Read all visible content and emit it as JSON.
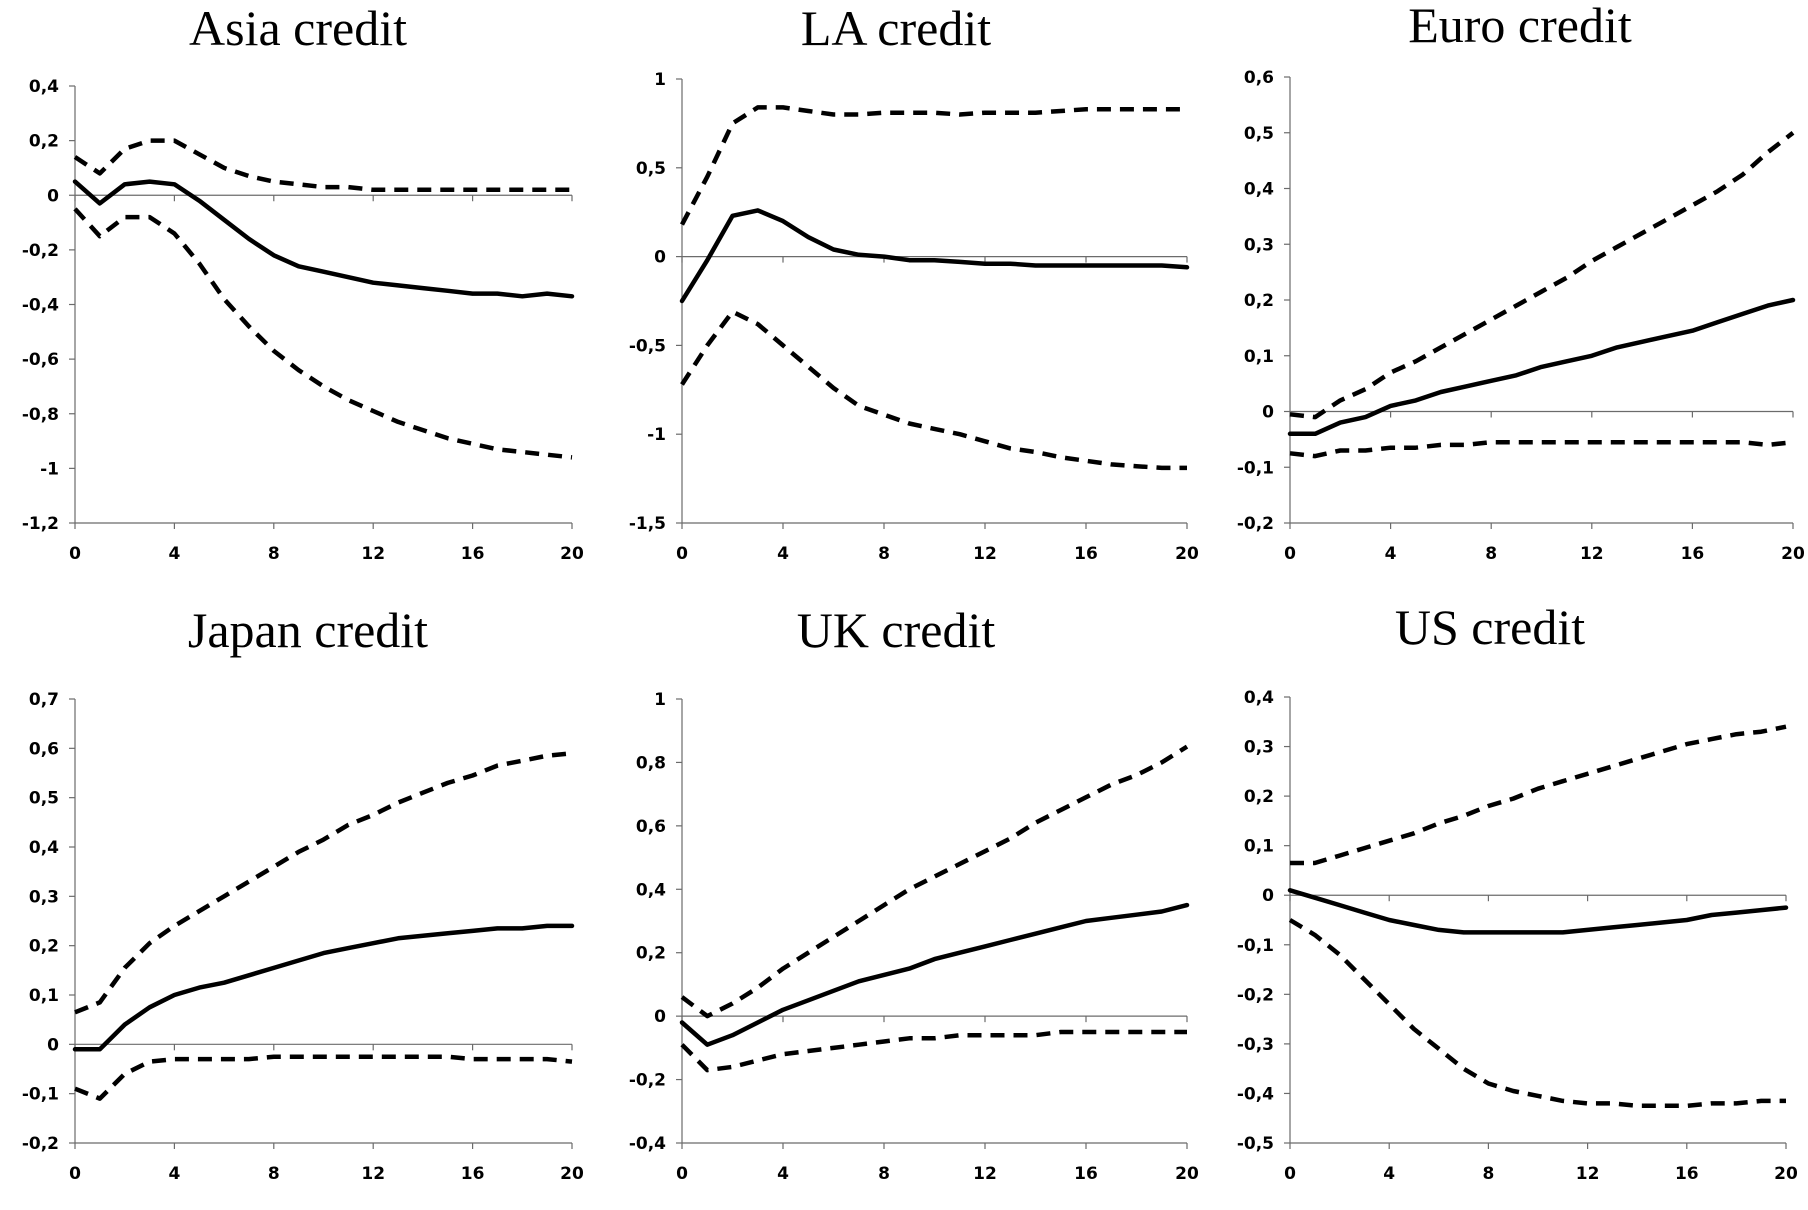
{
  "chart_data": [
    {
      "type": "line",
      "title": "Asia credit",
      "x": [
        0,
        1,
        2,
        3,
        4,
        5,
        6,
        7,
        8,
        9,
        10,
        11,
        12,
        13,
        14,
        15,
        16,
        17,
        18,
        19,
        20
      ],
      "xticks": [
        "0",
        "4",
        "8",
        "12",
        "16",
        "20"
      ],
      "xlim": [
        0,
        20
      ],
      "ylim": [
        -1.2,
        0.4
      ],
      "yticks": [
        "-1,2",
        "-1",
        "-0,8",
        "-0,6",
        "-0,4",
        "-0,2",
        "0",
        "0,2",
        "0,4"
      ],
      "ytick_values": [
        -1.2,
        -1,
        -0.8,
        -0.6,
        -0.4,
        -0.2,
        0,
        0.2,
        0.4
      ],
      "series": [
        {
          "name": "upper band",
          "style": "dashed",
          "values": [
            0.14,
            0.08,
            0.17,
            0.2,
            0.2,
            0.15,
            0.1,
            0.07,
            0.05,
            0.04,
            0.03,
            0.03,
            0.02,
            0.02,
            0.02,
            0.02,
            0.02,
            0.02,
            0.02,
            0.02,
            0.02
          ]
        },
        {
          "name": "response",
          "style": "solid",
          "values": [
            0.05,
            -0.03,
            0.04,
            0.05,
            0.04,
            -0.02,
            -0.09,
            -0.16,
            -0.22,
            -0.26,
            -0.28,
            -0.3,
            -0.32,
            -0.33,
            -0.34,
            -0.35,
            -0.36,
            -0.36,
            -0.37,
            -0.36,
            -0.37
          ]
        },
        {
          "name": "lower band",
          "style": "dashed",
          "values": [
            -0.05,
            -0.15,
            -0.08,
            -0.08,
            -0.14,
            -0.25,
            -0.38,
            -0.48,
            -0.57,
            -0.64,
            -0.7,
            -0.75,
            -0.79,
            -0.83,
            -0.86,
            -0.89,
            -0.91,
            -0.93,
            -0.94,
            -0.95,
            -0.96
          ]
        }
      ]
    },
    {
      "type": "line",
      "title": "LA credit",
      "x": [
        0,
        1,
        2,
        3,
        4,
        5,
        6,
        7,
        8,
        9,
        10,
        11,
        12,
        13,
        14,
        15,
        16,
        17,
        18,
        19,
        20
      ],
      "xticks": [
        "0",
        "4",
        "8",
        "12",
        "16",
        "20"
      ],
      "xlim": [
        0,
        20
      ],
      "ylim": [
        -1.5,
        1
      ],
      "yticks": [
        "-1,5",
        "-1",
        "-0,5",
        "0",
        "0,5",
        "1"
      ],
      "ytick_values": [
        -1.5,
        -1,
        -0.5,
        0,
        0.5,
        1
      ],
      "series": [
        {
          "name": "upper band",
          "style": "dashed",
          "values": [
            0.18,
            0.45,
            0.75,
            0.84,
            0.84,
            0.82,
            0.8,
            0.8,
            0.81,
            0.81,
            0.81,
            0.8,
            0.81,
            0.81,
            0.81,
            0.82,
            0.83,
            0.83,
            0.83,
            0.83,
            0.83
          ]
        },
        {
          "name": "response",
          "style": "solid",
          "values": [
            -0.25,
            -0.02,
            0.23,
            0.26,
            0.2,
            0.11,
            0.04,
            0.01,
            0.0,
            -0.02,
            -0.02,
            -0.03,
            -0.04,
            -0.04,
            -0.05,
            -0.05,
            -0.05,
            -0.05,
            -0.05,
            -0.05,
            -0.06
          ]
        },
        {
          "name": "lower band",
          "style": "dashed",
          "values": [
            -0.72,
            -0.5,
            -0.31,
            -0.38,
            -0.5,
            -0.62,
            -0.74,
            -0.84,
            -0.89,
            -0.94,
            -0.97,
            -1.0,
            -1.04,
            -1.08,
            -1.1,
            -1.13,
            -1.15,
            -1.17,
            -1.18,
            -1.19,
            -1.19
          ]
        }
      ]
    },
    {
      "type": "line",
      "title": "Euro credit",
      "x": [
        0,
        1,
        2,
        3,
        4,
        5,
        6,
        7,
        8,
        9,
        10,
        11,
        12,
        13,
        14,
        15,
        16,
        17,
        18,
        19,
        20
      ],
      "xticks": [
        "0",
        "4",
        "8",
        "12",
        "16",
        "20"
      ],
      "xlim": [
        0,
        20
      ],
      "ylim": [
        -0.2,
        0.6
      ],
      "yticks": [
        "-0,2",
        "-0,1",
        "0",
        "0,1",
        "0,2",
        "0,3",
        "0,4",
        "0,5",
        "0,6"
      ],
      "ytick_values": [
        -0.2,
        -0.1,
        0,
        0.1,
        0.2,
        0.3,
        0.4,
        0.5,
        0.6
      ],
      "series": [
        {
          "name": "upper band",
          "style": "dashed",
          "values": [
            -0.005,
            -0.01,
            0.02,
            0.04,
            0.07,
            0.09,
            0.115,
            0.14,
            0.165,
            0.19,
            0.215,
            0.24,
            0.27,
            0.295,
            0.32,
            0.345,
            0.37,
            0.395,
            0.425,
            0.465,
            0.5
          ]
        },
        {
          "name": "response",
          "style": "solid",
          "values": [
            -0.04,
            -0.04,
            -0.02,
            -0.01,
            0.01,
            0.02,
            0.035,
            0.045,
            0.055,
            0.065,
            0.08,
            0.09,
            0.1,
            0.115,
            0.125,
            0.135,
            0.145,
            0.16,
            0.175,
            0.19,
            0.2
          ]
        },
        {
          "name": "lower band",
          "style": "dashed",
          "values": [
            -0.075,
            -0.08,
            -0.07,
            -0.07,
            -0.065,
            -0.065,
            -0.06,
            -0.06,
            -0.055,
            -0.055,
            -0.055,
            -0.055,
            -0.055,
            -0.055,
            -0.055,
            -0.055,
            -0.055,
            -0.055,
            -0.055,
            -0.06,
            -0.055
          ]
        }
      ]
    },
    {
      "type": "line",
      "title": "Japan credit",
      "x": [
        0,
        1,
        2,
        3,
        4,
        5,
        6,
        7,
        8,
        9,
        10,
        11,
        12,
        13,
        14,
        15,
        16,
        17,
        18,
        19,
        20
      ],
      "xticks": [
        "0",
        "4",
        "8",
        "12",
        "16",
        "20"
      ],
      "xlim": [
        0,
        20
      ],
      "ylim": [
        -0.2,
        0.7
      ],
      "yticks": [
        "-0,2",
        "-0,1",
        "0",
        "0,1",
        "0,2",
        "0,3",
        "0,4",
        "0,5",
        "0,6",
        "0,7"
      ],
      "ytick_values": [
        -0.2,
        -0.1,
        0,
        0.1,
        0.2,
        0.3,
        0.4,
        0.5,
        0.6,
        0.7
      ],
      "series": [
        {
          "name": "upper band",
          "style": "dashed",
          "values": [
            0.065,
            0.085,
            0.155,
            0.205,
            0.24,
            0.27,
            0.3,
            0.33,
            0.36,
            0.39,
            0.415,
            0.445,
            0.465,
            0.49,
            0.51,
            0.53,
            0.545,
            0.565,
            0.575,
            0.585,
            0.59
          ]
        },
        {
          "name": "response",
          "style": "solid",
          "values": [
            -0.01,
            -0.01,
            0.04,
            0.075,
            0.1,
            0.115,
            0.125,
            0.14,
            0.155,
            0.17,
            0.185,
            0.195,
            0.205,
            0.215,
            0.22,
            0.225,
            0.23,
            0.235,
            0.235,
            0.24,
            0.24
          ]
        },
        {
          "name": "lower band",
          "style": "dashed",
          "values": [
            -0.09,
            -0.11,
            -0.06,
            -0.035,
            -0.03,
            -0.03,
            -0.03,
            -0.03,
            -0.025,
            -0.025,
            -0.025,
            -0.025,
            -0.025,
            -0.025,
            -0.025,
            -0.025,
            -0.03,
            -0.03,
            -0.03,
            -0.03,
            -0.035
          ]
        }
      ]
    },
    {
      "type": "line",
      "title": "UK credit",
      "x": [
        0,
        1,
        2,
        3,
        4,
        5,
        6,
        7,
        8,
        9,
        10,
        11,
        12,
        13,
        14,
        15,
        16,
        17,
        18,
        19,
        20
      ],
      "xticks": [
        "0",
        "4",
        "8",
        "12",
        "16",
        "20"
      ],
      "xlim": [
        0,
        20
      ],
      "ylim": [
        -0.4,
        1
      ],
      "yticks": [
        "-0,4",
        "-0,2",
        "0",
        "0,2",
        "0,4",
        "0,6",
        "0,8",
        "1"
      ],
      "ytick_values": [
        -0.4,
        -0.2,
        0,
        0.2,
        0.4,
        0.6,
        0.8,
        1
      ],
      "series": [
        {
          "name": "upper band",
          "style": "dashed",
          "values": [
            0.06,
            0.0,
            0.04,
            0.09,
            0.15,
            0.2,
            0.25,
            0.3,
            0.35,
            0.4,
            0.44,
            0.48,
            0.52,
            0.56,
            0.61,
            0.65,
            0.69,
            0.73,
            0.76,
            0.8,
            0.85
          ]
        },
        {
          "name": "response",
          "style": "solid",
          "values": [
            -0.02,
            -0.09,
            -0.06,
            -0.02,
            0.02,
            0.05,
            0.08,
            0.11,
            0.13,
            0.15,
            0.18,
            0.2,
            0.22,
            0.24,
            0.26,
            0.28,
            0.3,
            0.31,
            0.32,
            0.33,
            0.35
          ]
        },
        {
          "name": "lower band",
          "style": "dashed",
          "values": [
            -0.09,
            -0.17,
            -0.16,
            -0.14,
            -0.12,
            -0.11,
            -0.1,
            -0.09,
            -0.08,
            -0.07,
            -0.07,
            -0.06,
            -0.06,
            -0.06,
            -0.06,
            -0.05,
            -0.05,
            -0.05,
            -0.05,
            -0.05,
            -0.05
          ]
        }
      ]
    },
    {
      "type": "line",
      "title": "US credit",
      "x": [
        0,
        1,
        2,
        3,
        4,
        5,
        6,
        7,
        8,
        9,
        10,
        11,
        12,
        13,
        14,
        15,
        16,
        17,
        18,
        19,
        20
      ],
      "xticks": [
        "0",
        "4",
        "8",
        "12",
        "16",
        "20"
      ],
      "xlim": [
        0,
        20
      ],
      "ylim": [
        -0.5,
        0.4
      ],
      "yticks": [
        "-0,5",
        "-0,4",
        "-0,3",
        "-0,2",
        "-0,1",
        "0",
        "0,1",
        "0,2",
        "0,3",
        "0,4"
      ],
      "ytick_values": [
        -0.5,
        -0.4,
        -0.3,
        -0.2,
        -0.1,
        0,
        0.1,
        0.2,
        0.3,
        0.4
      ],
      "series": [
        {
          "name": "upper band",
          "style": "dashed",
          "values": [
            0.065,
            0.065,
            0.08,
            0.095,
            0.11,
            0.125,
            0.145,
            0.16,
            0.18,
            0.195,
            0.215,
            0.23,
            0.245,
            0.26,
            0.275,
            0.29,
            0.305,
            0.315,
            0.325,
            0.33,
            0.34
          ]
        },
        {
          "name": "response",
          "style": "solid",
          "values": [
            0.01,
            -0.005,
            -0.02,
            -0.035,
            -0.05,
            -0.06,
            -0.07,
            -0.075,
            -0.075,
            -0.075,
            -0.075,
            -0.075,
            -0.07,
            -0.065,
            -0.06,
            -0.055,
            -0.05,
            -0.04,
            -0.035,
            -0.03,
            -0.025
          ]
        },
        {
          "name": "lower band",
          "style": "dashed",
          "values": [
            -0.05,
            -0.08,
            -0.12,
            -0.17,
            -0.22,
            -0.27,
            -0.31,
            -0.35,
            -0.38,
            -0.395,
            -0.405,
            -0.415,
            -0.42,
            -0.42,
            -0.425,
            -0.425,
            -0.425,
            -0.42,
            -0.42,
            -0.415,
            -0.415
          ]
        }
      ]
    }
  ]
}
